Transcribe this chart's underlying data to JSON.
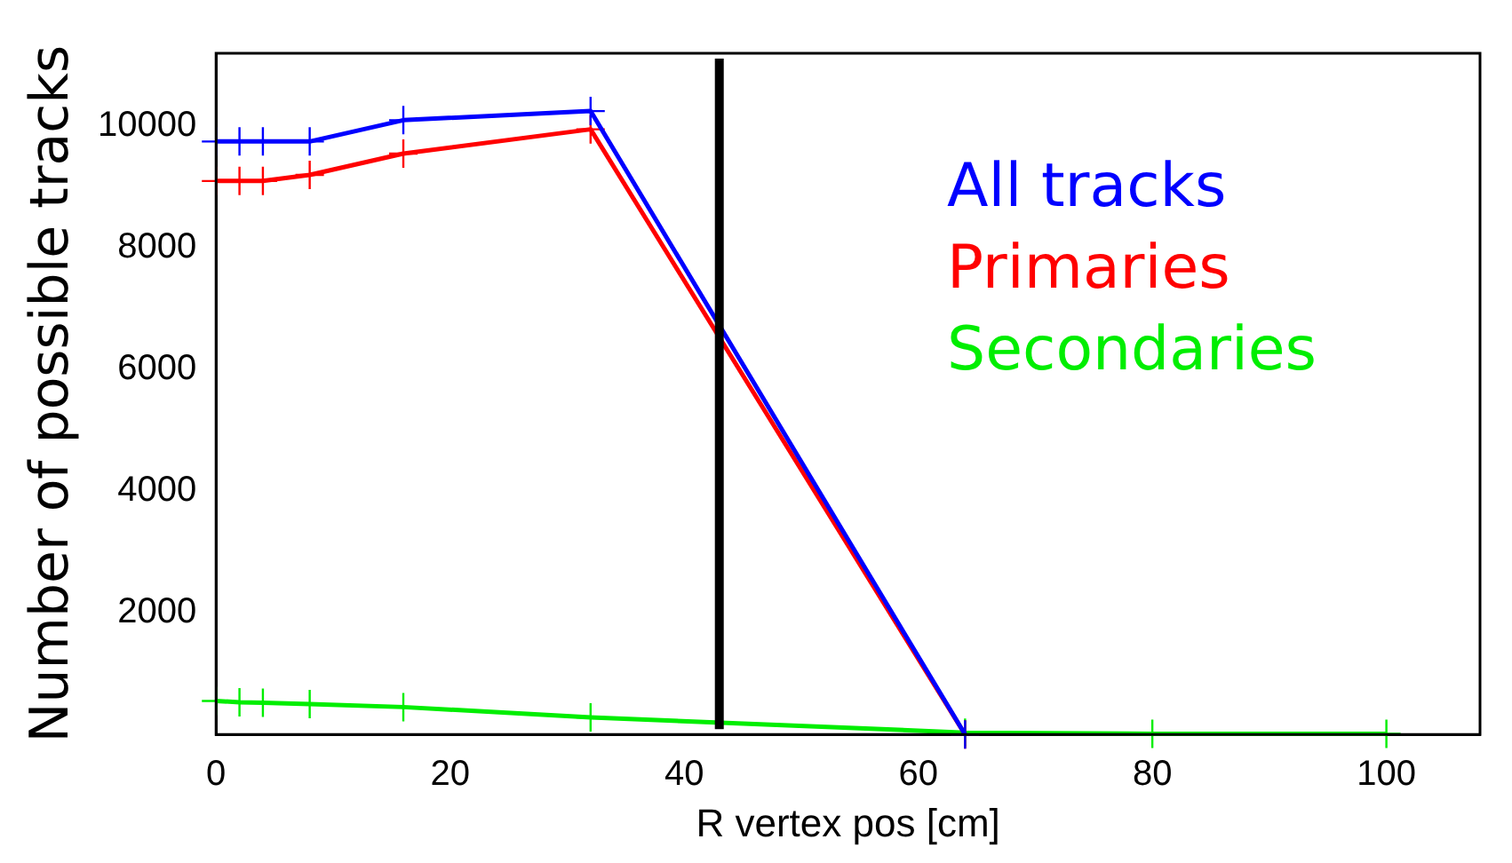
{
  "chart_data": {
    "type": "line",
    "xlabel": "R vertex pos [cm]",
    "ylabel": "Number of possible tracks",
    "xlim": [
      0,
      108
    ],
    "ylim": [
      0,
      11200
    ],
    "xticks": [
      0,
      20,
      40,
      60,
      80,
      100
    ],
    "yticks": [
      2000,
      4000,
      6000,
      8000,
      10000
    ],
    "grid": false,
    "legend": "top right",
    "marker": "cross",
    "line_style": "solid",
    "series": [
      {
        "name": "All tracks",
        "color": "#0000ff",
        "x": [
          0,
          2,
          4,
          8,
          16,
          32,
          64
        ],
        "values": [
          9750,
          9750,
          9750,
          9750,
          10100,
          10250,
          0
        ]
      },
      {
        "name": "Primaries",
        "color": "#ff0000",
        "x": [
          0,
          2,
          4,
          8,
          16,
          32,
          64
        ],
        "values": [
          9100,
          9100,
          9100,
          9200,
          9550,
          9950,
          0
        ]
      },
      {
        "name": "Secondaries",
        "color": "#00ee00",
        "x": [
          0,
          2,
          4,
          8,
          16,
          32,
          64,
          80,
          100
        ],
        "values": [
          550,
          530,
          520,
          500,
          450,
          280,
          30,
          10,
          10
        ]
      }
    ],
    "ref_lines": [
      {
        "axis": "x",
        "value": 43,
        "color": "#000000"
      }
    ]
  }
}
